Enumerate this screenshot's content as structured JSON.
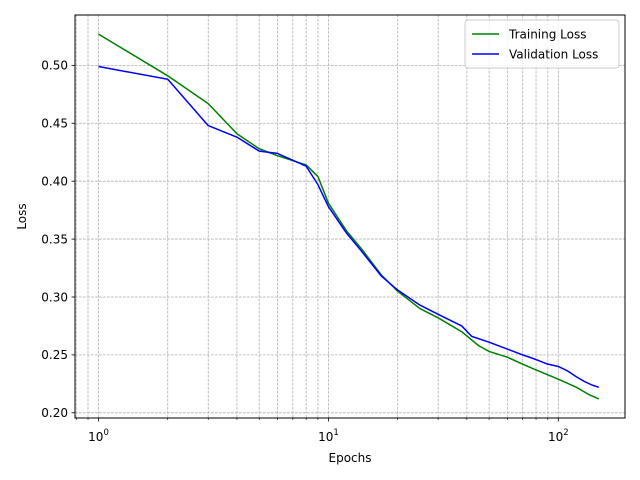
{
  "chart_data": {
    "type": "line",
    "xscale": "log",
    "xlabel": "Epochs",
    "ylabel": "Loss",
    "xlim": [
      0.79,
      195
    ],
    "ylim": [
      0.1955,
      0.5435
    ],
    "grid": true,
    "grid_which": "both",
    "legend_position": "top-right",
    "x_ticks": [
      1,
      10,
      100
    ],
    "x_tick_labels": [
      {
        "base": "10",
        "exp": "0"
      },
      {
        "base": "10",
        "exp": "1"
      },
      {
        "base": "10",
        "exp": "2"
      }
    ],
    "y_ticks": [
      0.2,
      0.25,
      0.3,
      0.35,
      0.4,
      0.45,
      0.5
    ],
    "y_tick_labels": [
      "0.20",
      "0.25",
      "0.30",
      "0.35",
      "0.40",
      "0.45",
      "0.50"
    ],
    "series": [
      {
        "name": "Training Loss",
        "color": "#008000",
        "x": [
          1,
          2,
          3,
          4,
          5,
          6,
          8,
          9,
          10,
          12,
          14,
          17,
          20,
          25,
          30,
          38,
          45,
          50,
          60,
          70,
          80,
          100,
          120,
          135,
          150
        ],
        "y": [
          0.527,
          0.491,
          0.467,
          0.441,
          0.428,
          0.422,
          0.414,
          0.404,
          0.381,
          0.357,
          0.341,
          0.319,
          0.305,
          0.29,
          0.282,
          0.27,
          0.258,
          0.253,
          0.248,
          0.242,
          0.237,
          0.229,
          0.222,
          0.216,
          0.212
        ]
      },
      {
        "name": "Validation Loss",
        "color": "#0000ff",
        "x": [
          1,
          2,
          3,
          4,
          5,
          6,
          8,
          9,
          10,
          12,
          14,
          17,
          20,
          25,
          30,
          38,
          42,
          50,
          60,
          70,
          80,
          90,
          100,
          110,
          120,
          130,
          140,
          150
        ],
        "y": [
          0.499,
          0.488,
          0.448,
          0.438,
          0.426,
          0.424,
          0.413,
          0.397,
          0.378,
          0.355,
          0.339,
          0.318,
          0.306,
          0.293,
          0.285,
          0.275,
          0.266,
          0.261,
          0.255,
          0.25,
          0.246,
          0.242,
          0.24,
          0.236,
          0.231,
          0.227,
          0.224,
          0.222
        ]
      }
    ]
  }
}
